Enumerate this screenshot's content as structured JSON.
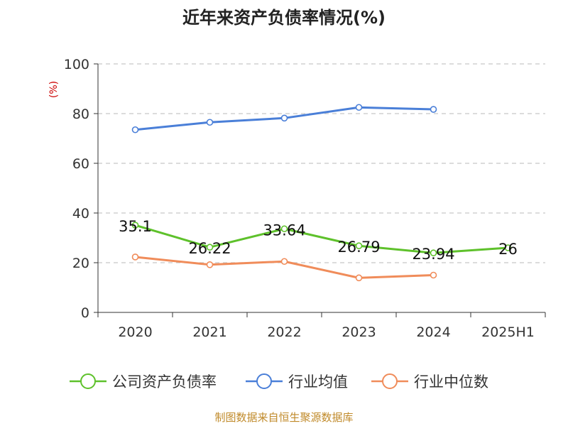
{
  "chart_data": {
    "type": "line",
    "title": "近年来资产负债率情况(%)",
    "ylabel": "(%)",
    "ylim": [
      0,
      100
    ],
    "yticks": [
      0,
      20,
      40,
      60,
      80,
      100
    ],
    "categories": [
      "2020",
      "2021",
      "2022",
      "2023",
      "2024",
      "2025H1"
    ],
    "series": [
      {
        "name": "公司资产负债率",
        "color": "#5ec12b",
        "values": [
          35.1,
          26.22,
          33.64,
          26.79,
          23.94,
          26
        ],
        "labels": [
          "35.1",
          "26.22",
          "33.64",
          "26.79",
          "23.94",
          "26"
        ]
      },
      {
        "name": "行业均值",
        "color": "#4a7fd8",
        "values": [
          73.5,
          76.5,
          78.2,
          82.5,
          81.7,
          null
        ]
      },
      {
        "name": "行业中位数",
        "color": "#f08c5a",
        "values": [
          22.3,
          19.2,
          20.5,
          13.9,
          15.0,
          null
        ]
      }
    ],
    "grid": true,
    "legend": "bottom"
  },
  "source": "制图数据来自恒生聚源数据库"
}
